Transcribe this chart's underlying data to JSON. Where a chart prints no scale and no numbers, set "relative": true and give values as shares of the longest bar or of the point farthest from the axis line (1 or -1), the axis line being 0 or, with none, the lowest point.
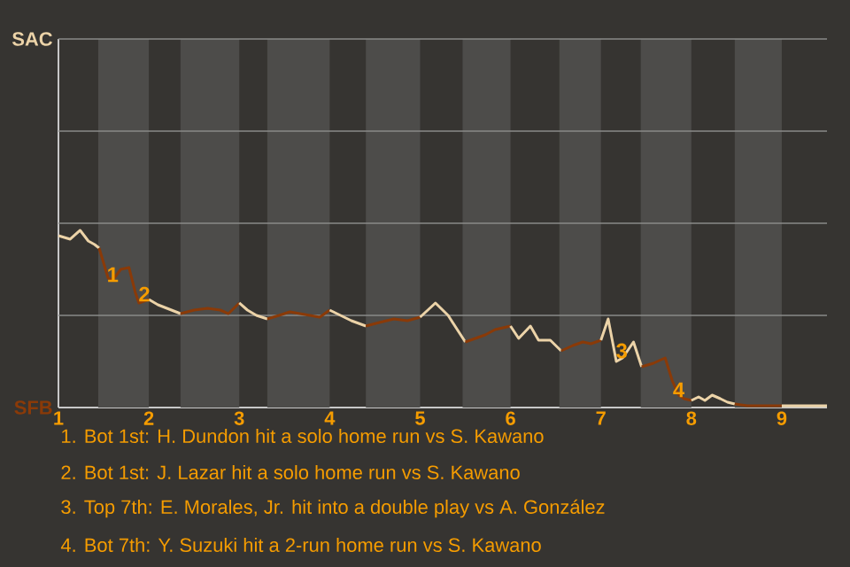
{
  "chart_data": {
    "type": "line",
    "relative": true,
    "series": [
      {
        "color": "#ecd3a8",
        "x": [
          1.0,
          1.13,
          1.24,
          1.33,
          1.4,
          1.45
        ],
        "values": [
          0.97,
          0.95,
          1,
          0.94,
          0.92,
          0.9
        ]
      },
      {
        "color": "#8a3a08",
        "x": [
          1.45,
          1.55,
          1.6,
          1.69,
          1.78,
          1.85,
          1.89,
          2.0
        ],
        "values": [
          0.9,
          0.73,
          0.72,
          0.78,
          0.79,
          0.65,
          0.59,
          0.61
        ]
      },
      {
        "color": "#ecd3a8",
        "x": [
          2.0,
          2.1,
          2.25,
          2.35
        ],
        "values": [
          0.61,
          0.58,
          0.55,
          0.53
        ]
      },
      {
        "color": "#8a3a08",
        "x": [
          2.35,
          2.5,
          2.65,
          2.79,
          2.88,
          3.0
        ],
        "values": [
          0.53,
          0.55,
          0.56,
          0.55,
          0.53,
          0.59
        ]
      },
      {
        "color": "#ecd3a8",
        "x": [
          3.0,
          3.09,
          3.19,
          3.31
        ],
        "values": [
          0.59,
          0.55,
          0.52,
          0.5
        ]
      },
      {
        "color": "#8a3a08",
        "x": [
          3.31,
          3.44,
          3.56,
          3.67,
          3.78,
          3.89,
          4.0
        ],
        "values": [
          0.5,
          0.52,
          0.54,
          0.53,
          0.52,
          0.51,
          0.55
        ]
      },
      {
        "color": "#ecd3a8",
        "x": [
          4.0,
          4.12,
          4.24,
          4.4
        ],
        "values": [
          0.55,
          0.52,
          0.49,
          0.46
        ]
      },
      {
        "color": "#8a3a08",
        "x": [
          4.4,
          4.55,
          4.71,
          4.86,
          5.0
        ],
        "values": [
          0.46,
          0.48,
          0.5,
          0.49,
          0.51
        ]
      },
      {
        "color": "#ecd3a8",
        "x": [
          5.0,
          5.17,
          5.31,
          5.5
        ],
        "values": [
          0.51,
          0.59,
          0.52,
          0.37
        ]
      },
      {
        "color": "#8a3a08",
        "x": [
          5.5,
          5.72,
          5.83,
          6.0
        ],
        "values": [
          0.37,
          0.41,
          0.44,
          0.46
        ]
      },
      {
        "color": "#ecd3a8",
        "x": [
          6.0,
          6.09,
          6.22,
          6.31,
          6.44,
          6.56
        ],
        "values": [
          0.46,
          0.39,
          0.46,
          0.38,
          0.38,
          0.32
        ]
      },
      {
        "color": "#8a3a08",
        "x": [
          6.56,
          6.69,
          6.8,
          6.89,
          7.0
        ],
        "values": [
          0.32,
          0.35,
          0.37,
          0.36,
          0.38
        ]
      },
      {
        "color": "#ecd3a8",
        "x": [
          7.0,
          7.08,
          7.17,
          7.24,
          7.36,
          7.45
        ],
        "values": [
          0.38,
          0.5,
          0.26,
          0.28,
          0.37,
          0.23
        ]
      },
      {
        "color": "#8a3a08",
        "x": [
          7.45,
          7.58,
          7.71,
          7.79,
          7.86,
          7.92,
          8.0
        ],
        "values": [
          0.23,
          0.25,
          0.28,
          0.15,
          0.07,
          0.05,
          0.04
        ]
      },
      {
        "color": "#ecd3a8",
        "x": [
          8.0,
          8.08,
          8.15,
          8.23,
          8.32,
          8.4,
          8.48
        ],
        "values": [
          0.04,
          0.06,
          0.04,
          0.07,
          0.05,
          0.03,
          0.02
        ]
      },
      {
        "color": "#8a3a08",
        "x": [
          8.48,
          8.62,
          8.78,
          9.0
        ],
        "values": [
          0.02,
          0.01,
          0.01,
          0.01
        ]
      },
      {
        "color": "#ecd3a8",
        "x": [
          9.0,
          9.5
        ],
        "values": [
          0.01,
          0.01
        ]
      }
    ],
    "xlim": [
      1,
      9.5
    ],
    "xticks": [
      {
        "value": 1,
        "label": "1"
      },
      {
        "value": 2,
        "label": "2"
      },
      {
        "value": 3,
        "label": "3"
      },
      {
        "value": 4,
        "label": "4"
      },
      {
        "value": 5,
        "label": "5"
      },
      {
        "value": 6,
        "label": "6"
      },
      {
        "value": 7,
        "label": "7"
      },
      {
        "value": 8,
        "label": "8"
      },
      {
        "value": 9,
        "label": "9"
      }
    ],
    "ref_lines": [
      {
        "axis": "y",
        "value": 0.52,
        "color": "#8a8a88"
      },
      {
        "axis": "y",
        "value": 1.04,
        "color": "#8a8a88"
      },
      {
        "axis": "y",
        "value": 1.56,
        "color": "#8a8a88"
      }
    ],
    "bands": [
      {
        "axis": "x",
        "from": 1.44,
        "to": 2,
        "color": "#4d4c4a"
      },
      {
        "axis": "x",
        "from": 2.35,
        "to": 3,
        "color": "#4d4c4a"
      },
      {
        "axis": "x",
        "from": 3.31,
        "to": 4,
        "color": "#4d4c4a"
      },
      {
        "axis": "x",
        "from": 4.4,
        "to": 5,
        "color": "#4d4c4a"
      },
      {
        "axis": "x",
        "from": 5.47,
        "to": 6,
        "color": "#4d4c4a"
      },
      {
        "axis": "x",
        "from": 6.54,
        "to": 7,
        "color": "#4d4c4a"
      },
      {
        "axis": "x",
        "from": 7.44,
        "to": 8,
        "color": "#4d4c4a"
      },
      {
        "axis": "x",
        "from": 8.48,
        "to": 9,
        "color": "#4d4c4a"
      }
    ],
    "annotations": [
      "SAC",
      "SFB",
      {
        "text": "1",
        "x": 1.6,
        "y": 0.75
      },
      {
        "text": "2",
        "x": 1.95,
        "y": 0.64
      },
      {
        "text": "3",
        "x": 7.23,
        "y": 0.32
      },
      {
        "text": "4",
        "x": 7.86,
        "y": 0.1
      },
      "1. Bot 1st: H. Dundon hit a solo home run vs S. Kawano",
      "2. Bot 1st: J. Lazar hit a solo home run vs S. Kawano",
      "3. Top 7th: E. Morales, Jr. hit into a double play vs A. González",
      "4. Bot 7th: Y. Suzuki hit a 2-run home run vs S. Kawano"
    ],
    "marker": "none",
    "line_style": "solid"
  }
}
